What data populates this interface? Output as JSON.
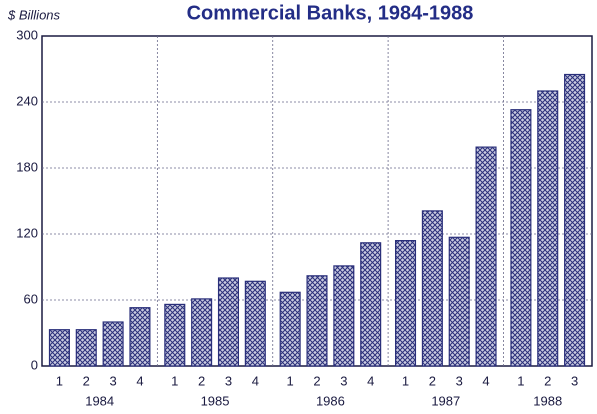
{
  "chart_data": {
    "type": "bar",
    "title": "Commercial Banks, 1984-1988",
    "y_label": "$ Billions",
    "groups": [
      {
        "name": "1984",
        "categories": [
          "1",
          "2",
          "3",
          "4"
        ],
        "values": [
          33,
          33,
          40,
          53
        ]
      },
      {
        "name": "1985",
        "categories": [
          "1",
          "2",
          "3",
          "4"
        ],
        "values": [
          56,
          61,
          80,
          77
        ]
      },
      {
        "name": "1986",
        "categories": [
          "1",
          "2",
          "3",
          "4"
        ],
        "values": [
          67,
          82,
          91,
          112
        ]
      },
      {
        "name": "1987",
        "categories": [
          "1",
          "2",
          "3",
          "4"
        ],
        "values": [
          114,
          141,
          117,
          199
        ]
      },
      {
        "name": "1988",
        "categories": [
          "1",
          "2",
          "3"
        ],
        "values": [
          233,
          250,
          265
        ]
      }
    ],
    "color": "#2a2f7a",
    "ylim": [
      0,
      300
    ],
    "yticks": [
      0,
      60,
      120,
      180,
      240,
      300
    ],
    "grid": true
  }
}
